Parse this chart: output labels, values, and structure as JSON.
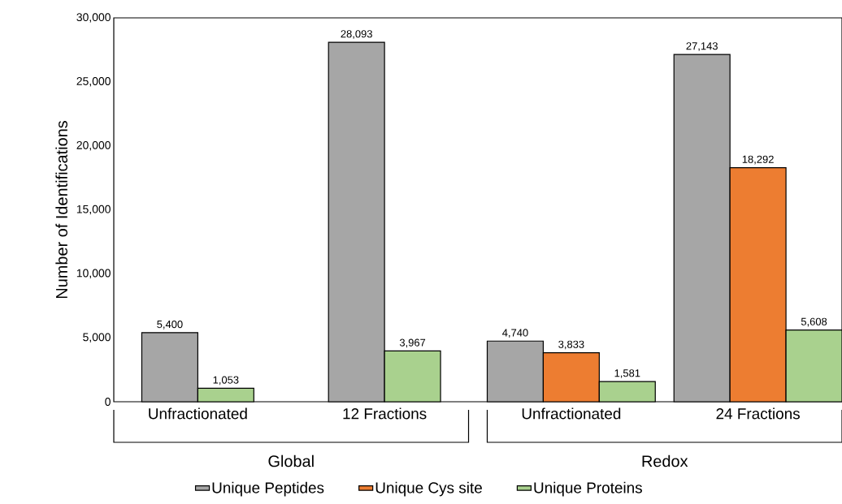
{
  "chart_data": {
    "type": "bar",
    "ylabel": "Number of Identifications",
    "categories": [
      "Unfractionated",
      "12 Fractions",
      "Unfractionated",
      "24 Fractions"
    ],
    "series": [
      {
        "name": "Unique Peptides",
        "color": "#a6a6a6",
        "values": [
          5400,
          28093,
          4740,
          27143
        ],
        "value_labels": [
          "5,400",
          "28,093",
          "4,740",
          "27,143"
        ]
      },
      {
        "name": "Unique Cys site",
        "color": "#ed7d31",
        "values": [
          null,
          null,
          3833,
          18292
        ],
        "value_labels": [
          null,
          null,
          "3,833",
          "18,292"
        ]
      },
      {
        "name": "Unique Proteins",
        "color": "#a9d18e",
        "values": [
          1053,
          3967,
          1581,
          5608
        ],
        "value_labels": [
          "1,053",
          "3,967",
          "1,581",
          "5,608"
        ]
      }
    ],
    "ylim": [
      0,
      30000
    ],
    "yticks": [
      0,
      {
        "value": 5000,
        "label": "5,000"
      },
      {
        "value": 10000,
        "label": "10,000"
      },
      {
        "value": 15000,
        "label": "15,000"
      },
      {
        "value": 20000,
        "label": "20,000"
      },
      {
        "value": 25000,
        "label": "25,000"
      },
      {
        "value": 30000,
        "label": "30,000"
      }
    ],
    "annotations": [
      "Global",
      "Redox"
    ],
    "legend": "bottom"
  }
}
